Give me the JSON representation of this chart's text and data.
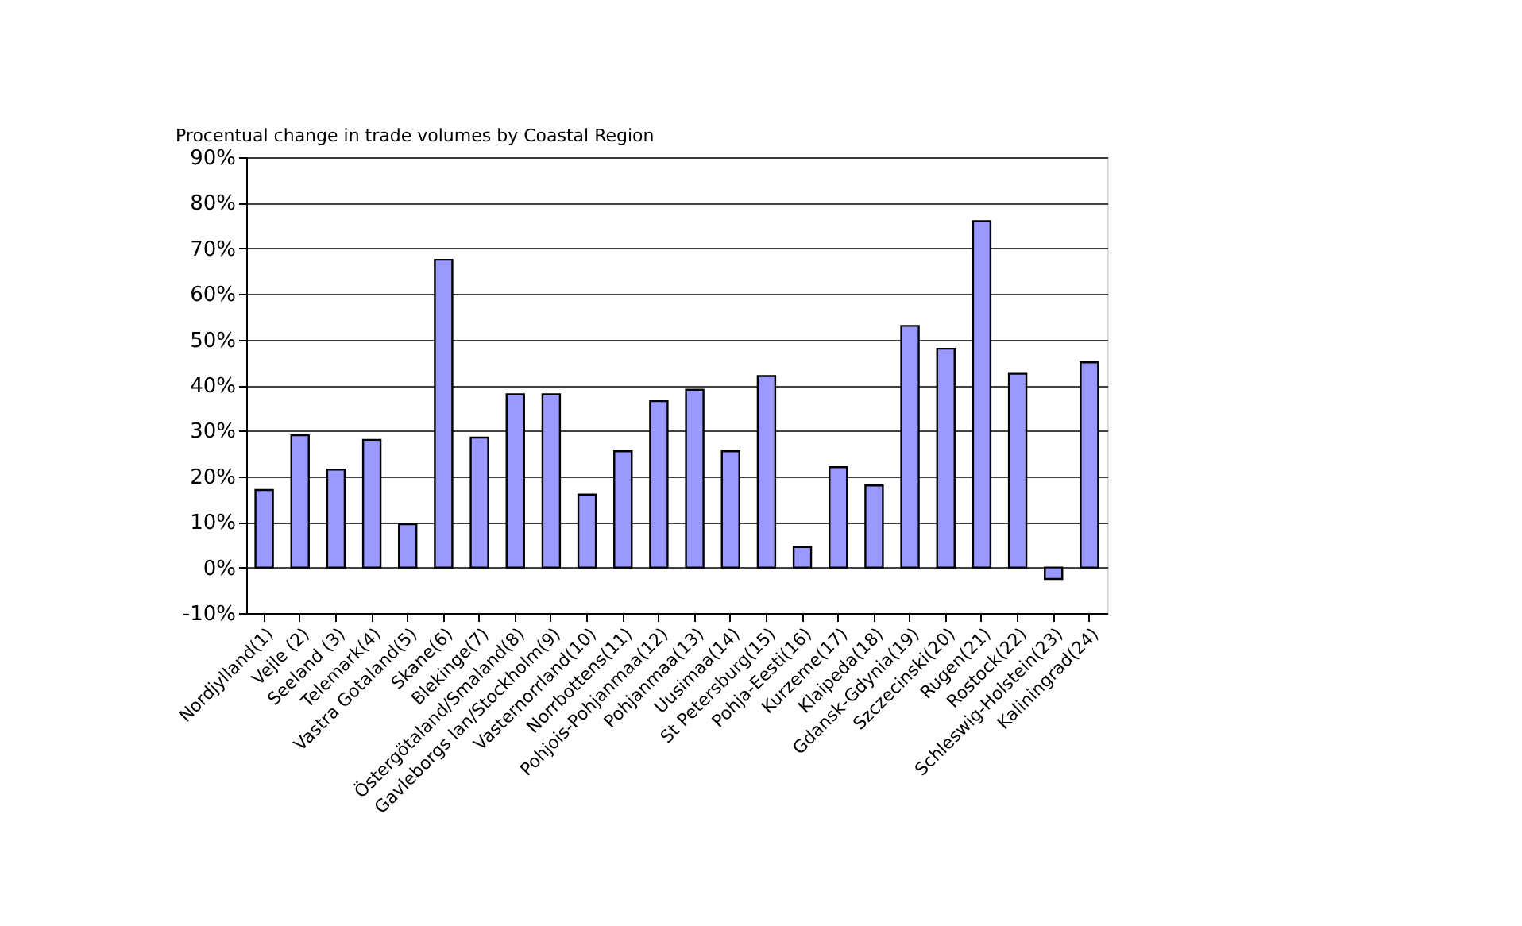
{
  "chart_data": {
    "type": "bar",
    "title": "Procentual change in trade volumes by Coastal Region",
    "categories": [
      "Nordjylland(1)",
      "Vejle (2)",
      "Seeland (3)",
      "Telemark(4)",
      "Vastra Gotaland(5)",
      "Skane(6)",
      "Blekinge(7)",
      "Östergötaland/Smaland(8)",
      "Gavleborgs lan/Stockholm(9)",
      "Vasternorrland(10)",
      "Norrbottens(11)",
      "Pohjois-Pohjanmaa(12)",
      "Pohjanmaa(13)",
      "Uusimaa(14)",
      "St Petersburg(15)",
      "Pohja-Eesti(16)",
      "Kurzeme(17)",
      "Klaipeda(18)",
      "Gdansk-Gdynia(19)",
      "Szczecinski(20)",
      "Rugen(21)",
      "Rostock(22)",
      "Schleswig-Holstein(23)",
      "Kaliningrad(24)"
    ],
    "values": [
      17,
      29,
      21.5,
      28,
      9.5,
      67.5,
      28.5,
      38,
      38,
      16,
      25.5,
      36.5,
      39,
      25.5,
      42,
      4.5,
      22,
      18,
      53,
      48,
      76,
      42.5,
      -2.5,
      45
    ],
    "color": "#9999ff",
    "ylim": [
      -10,
      90
    ],
    "yticks": [
      {
        "value": -10,
        "label": "-10%"
      },
      {
        "value": 0,
        "label": "0%"
      },
      {
        "value": 10,
        "label": "10%"
      },
      {
        "value": 20,
        "label": "20%"
      },
      {
        "value": 30,
        "label": "30%"
      },
      {
        "value": 40,
        "label": "40%"
      },
      {
        "value": 50,
        "label": "50%"
      },
      {
        "value": 60,
        "label": "60%"
      },
      {
        "value": 70,
        "label": "70%"
      },
      {
        "value": 80,
        "label": "80%"
      },
      {
        "value": 90,
        "label": "90%"
      }
    ],
    "grid": "y"
  }
}
